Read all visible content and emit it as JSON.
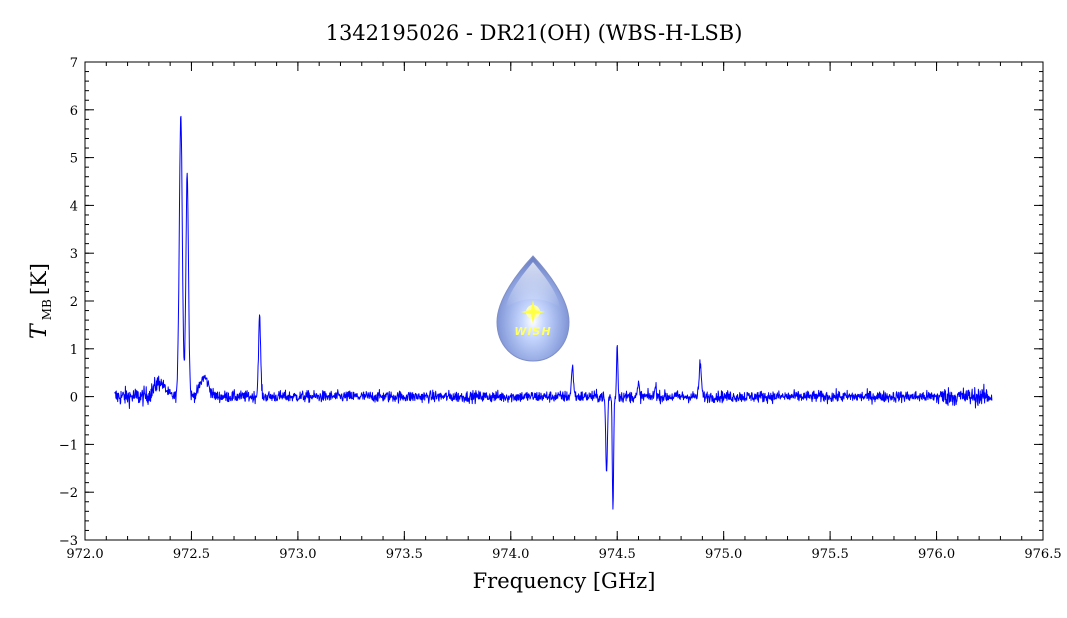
{
  "chart_data": {
    "type": "line",
    "title": "1342195026 - DR21(OH) (WBS-H-LSB)",
    "xlabel": "Frequency [GHz]",
    "ylabel_main": "T",
    "ylabel_sub": "MB",
    "ylabel_unit": "[K]",
    "xlim": [
      972.0,
      976.5
    ],
    "ylim": [
      -3,
      7
    ],
    "x_ticks": [
      "972.0",
      "972.5",
      "973.0",
      "973.5",
      "974.0",
      "974.5",
      "975.0",
      "975.5",
      "976.0",
      "976.5"
    ],
    "y_ticks": [
      "−3",
      "−2",
      "−1",
      "0",
      "1",
      "2",
      "3",
      "4",
      "5",
      "6",
      "7"
    ],
    "grid": false,
    "logo_text": "WISH",
    "series": [
      {
        "color": "#0000ff",
        "x_range": [
          972.14,
          976.26
        ],
        "baseline_noise": 0.06,
        "features": [
          {
            "x": 972.35,
            "y": 0.3
          },
          {
            "x": 972.45,
            "y": 5.9
          },
          {
            "x": 972.48,
            "y": 4.7
          },
          {
            "x": 972.56,
            "y": 0.4
          },
          {
            "x": 972.82,
            "y": 1.65
          },
          {
            "x": 974.29,
            "y": 0.6
          },
          {
            "x": 974.45,
            "y": -1.6
          },
          {
            "x": 974.48,
            "y": -2.4
          },
          {
            "x": 974.5,
            "y": 1.1
          },
          {
            "x": 974.6,
            "y": 0.25
          },
          {
            "x": 974.68,
            "y": 0.3
          },
          {
            "x": 974.89,
            "y": 0.7
          }
        ]
      }
    ]
  }
}
